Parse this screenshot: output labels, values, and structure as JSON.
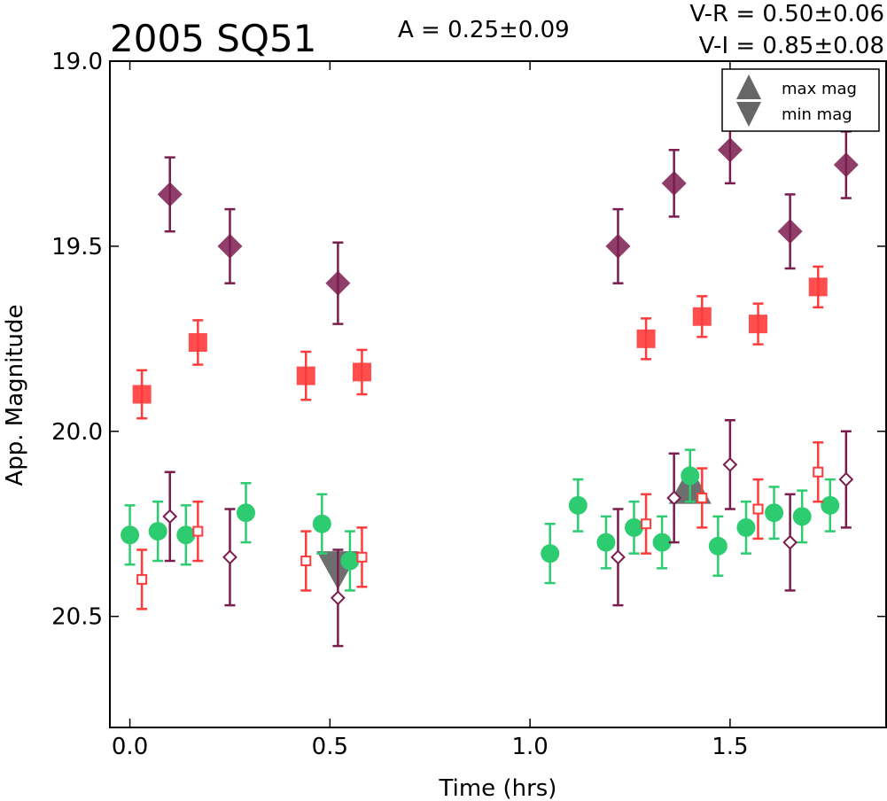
{
  "chart_data": {
    "type": "scatter",
    "title": "2005 SQ51",
    "annotations": {
      "amplitude": "A  = 0.25±0.09",
      "v_r": "V-R = 0.50±0.06",
      "v_i": "V-I  = 0.85±0.08"
    },
    "xlabel": "Time (hrs)",
    "ylabel": "App. Magnitude",
    "xlim": [
      -0.05,
      1.89
    ],
    "ylim": [
      20.8,
      19.0
    ],
    "y_inverted": true,
    "x_ticks": [
      "0.0",
      "0.5",
      "1.0",
      "1.5"
    ],
    "x_tick_values": [
      0.0,
      0.5,
      1.0,
      1.5
    ],
    "y_ticks": [
      "19.0",
      "19.5",
      "20.0",
      "20.5"
    ],
    "y_tick_values": [
      19.0,
      19.5,
      20.0,
      20.5
    ],
    "grid": false,
    "legend": {
      "placement": "top-right",
      "entries": [
        {
          "label": "max mag",
          "marker": "triangle-up"
        },
        {
          "label": "min mag",
          "marker": "triangle-down"
        }
      ]
    },
    "series": [
      {
        "marker": "circle",
        "filled": true,
        "color": "#2ecc71",
        "points": [
          {
            "x": 0.0,
            "y": 20.28,
            "err": 0.08
          },
          {
            "x": 0.07,
            "y": 20.27,
            "err": 0.08
          },
          {
            "x": 0.14,
            "y": 20.28,
            "err": 0.08
          },
          {
            "x": 0.29,
            "y": 20.22,
            "err": 0.08
          },
          {
            "x": 0.48,
            "y": 20.25,
            "err": 0.08
          },
          {
            "x": 0.55,
            "y": 20.35,
            "err": 0.08
          },
          {
            "x": 1.05,
            "y": 20.33,
            "err": 0.08
          },
          {
            "x": 1.12,
            "y": 20.2,
            "err": 0.07
          },
          {
            "x": 1.19,
            "y": 20.3,
            "err": 0.07
          },
          {
            "x": 1.26,
            "y": 20.26,
            "err": 0.07
          },
          {
            "x": 1.33,
            "y": 20.3,
            "err": 0.07
          },
          {
            "x": 1.4,
            "y": 20.12,
            "err": 0.07
          },
          {
            "x": 1.47,
            "y": 20.31,
            "err": 0.08
          },
          {
            "x": 1.54,
            "y": 20.26,
            "err": 0.07
          },
          {
            "x": 1.61,
            "y": 20.22,
            "err": 0.07
          },
          {
            "x": 1.68,
            "y": 20.23,
            "err": 0.07
          },
          {
            "x": 1.75,
            "y": 20.2,
            "err": 0.07
          }
        ]
      },
      {
        "marker": "square",
        "filled": false,
        "color": "#ff3b3b",
        "points": [
          {
            "x": 0.03,
            "y": 20.4,
            "err": 0.08
          },
          {
            "x": 0.17,
            "y": 20.27,
            "err": 0.08
          },
          {
            "x": 0.44,
            "y": 20.35,
            "err": 0.08
          },
          {
            "x": 0.58,
            "y": 20.34,
            "err": 0.08
          },
          {
            "x": 1.29,
            "y": 20.25,
            "err": 0.08
          },
          {
            "x": 1.43,
            "y": 20.18,
            "err": 0.08
          },
          {
            "x": 1.57,
            "y": 20.21,
            "err": 0.08
          },
          {
            "x": 1.72,
            "y": 20.11,
            "err": 0.08
          }
        ]
      },
      {
        "marker": "diamond",
        "filled": false,
        "color": "#7b1c4f",
        "points": [
          {
            "x": 0.1,
            "y": 20.23,
            "err": 0.12
          },
          {
            "x": 0.25,
            "y": 20.34,
            "err": 0.13
          },
          {
            "x": 0.52,
            "y": 20.45,
            "err": 0.13
          },
          {
            "x": 1.22,
            "y": 20.34,
            "err": 0.13
          },
          {
            "x": 1.36,
            "y": 20.18,
            "err": 0.12
          },
          {
            "x": 1.5,
            "y": 20.09,
            "err": 0.12
          },
          {
            "x": 1.65,
            "y": 20.3,
            "err": 0.13
          },
          {
            "x": 1.79,
            "y": 20.13,
            "err": 0.13
          }
        ]
      },
      {
        "marker": "square",
        "filled": true,
        "color": "#ff3b3b",
        "points": [
          {
            "x": 0.03,
            "y": 19.9,
            "err": 0.065
          },
          {
            "x": 0.17,
            "y": 19.76,
            "err": 0.06
          },
          {
            "x": 0.44,
            "y": 19.85,
            "err": 0.065
          },
          {
            "x": 0.58,
            "y": 19.84,
            "err": 0.06
          },
          {
            "x": 1.29,
            "y": 19.75,
            "err": 0.055
          },
          {
            "x": 1.43,
            "y": 19.69,
            "err": 0.055
          },
          {
            "x": 1.57,
            "y": 19.71,
            "err": 0.055
          },
          {
            "x": 1.72,
            "y": 19.61,
            "err": 0.055
          }
        ]
      },
      {
        "marker": "diamond",
        "filled": true,
        "color": "#7b1c4f",
        "points": [
          {
            "x": 0.1,
            "y": 19.36,
            "err": 0.1
          },
          {
            "x": 0.25,
            "y": 19.5,
            "err": 0.1
          },
          {
            "x": 0.52,
            "y": 19.6,
            "err": 0.11
          },
          {
            "x": 1.22,
            "y": 19.5,
            "err": 0.1
          },
          {
            "x": 1.36,
            "y": 19.33,
            "err": 0.09
          },
          {
            "x": 1.5,
            "y": 19.24,
            "err": 0.09
          },
          {
            "x": 1.65,
            "y": 19.46,
            "err": 0.1
          },
          {
            "x": 1.79,
            "y": 19.28,
            "err": 0.09
          }
        ]
      }
    ],
    "extrema_markers": [
      {
        "type": "max mag",
        "marker": "triangle-up",
        "x": 1.4,
        "y": 20.15,
        "color": "#666666"
      },
      {
        "type": "min mag",
        "marker": "triangle-down",
        "x": 0.52,
        "y": 20.37,
        "color": "#666666"
      }
    ]
  }
}
